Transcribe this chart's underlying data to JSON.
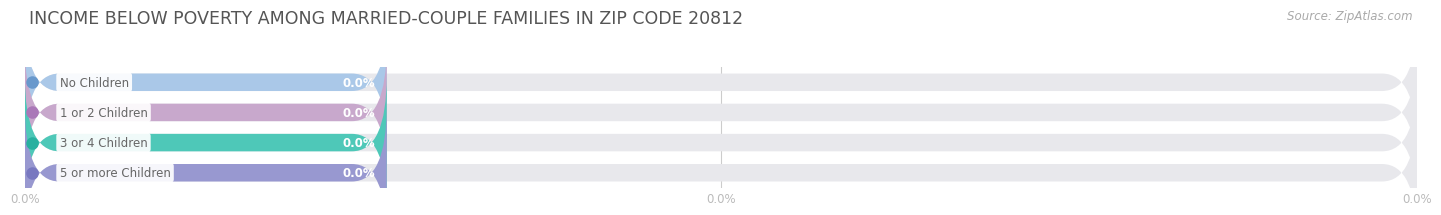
{
  "title": "INCOME BELOW POVERTY AMONG MARRIED-COUPLE FAMILIES IN ZIP CODE 20812",
  "source_text": "Source: ZipAtlas.com",
  "categories": [
    "No Children",
    "1 or 2 Children",
    "3 or 4 Children",
    "5 or more Children"
  ],
  "values": [
    0.0,
    0.0,
    0.0,
    0.0
  ],
  "bar_colors": [
    "#aac8e8",
    "#c8a8cc",
    "#4ec8b8",
    "#9898d0"
  ],
  "bar_bg_color": "#e8e8ec",
  "dot_colors": [
    "#6898cc",
    "#aa78b8",
    "#28b0a0",
    "#7878c0"
  ],
  "background_color": "#ffffff",
  "xlim": [
    0,
    100
  ],
  "title_fontsize": 12.5,
  "label_fontsize": 8.5,
  "value_fontsize": 8.5,
  "source_fontsize": 8.5,
  "bar_height": 0.58,
  "tick_label_color": "#bbbbbb",
  "label_color": "#666666",
  "title_color": "#555555",
  "colored_bar_width": 26,
  "xticks": [
    0,
    50,
    100
  ],
  "xtick_labels": [
    "0.0%",
    "0.0%",
    "0.0%"
  ]
}
